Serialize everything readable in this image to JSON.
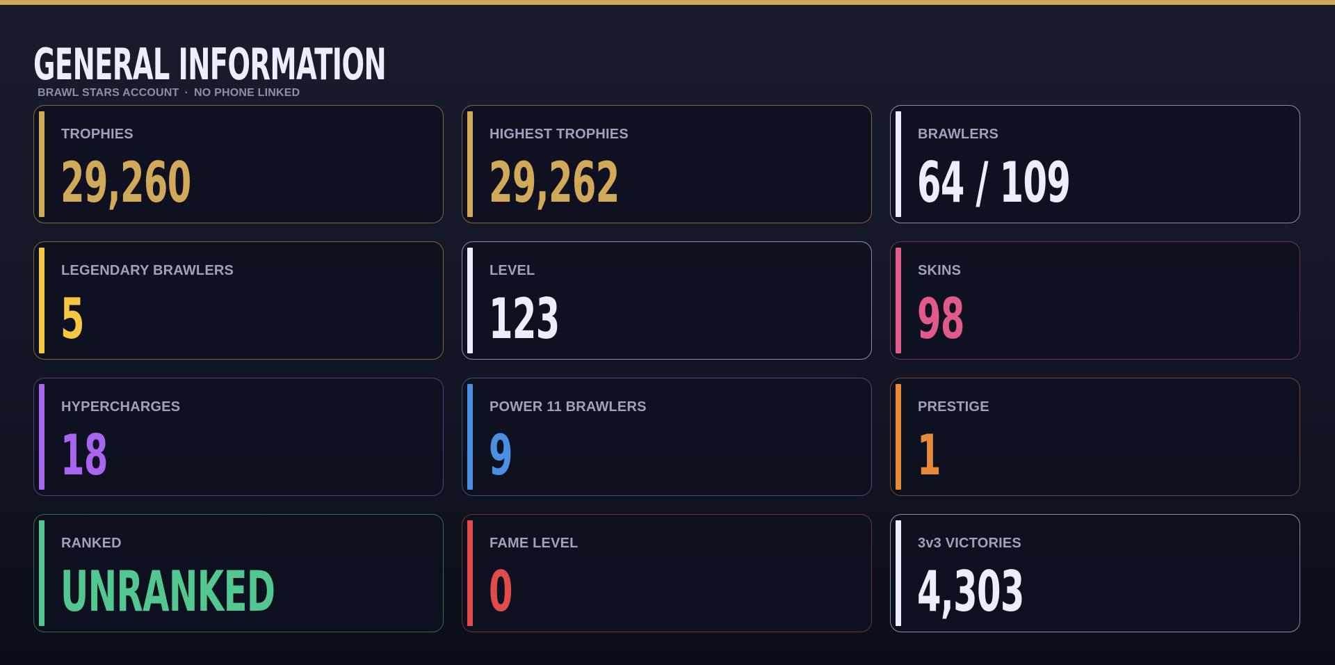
{
  "header": {
    "title": "GENERAL INFORMATION",
    "subtitle_account": "BRAWL STARS ACCOUNT",
    "subtitle_separator": "·",
    "subtitle_phone": "NO PHONE LINKED"
  },
  "colors": {
    "top_bar": "#d1aa59",
    "gold": "#d1aa59",
    "white": "#eceffb",
    "yellow": "#f6c842",
    "pink": "#e05a8a",
    "purple": "#a866ee",
    "blue": "#4a8fe0",
    "orange": "#e8893a",
    "green": "#52c790",
    "red": "#e04c4c"
  },
  "cards": [
    {
      "label": "TROPHIES",
      "value": "29,260",
      "color": "#d1aa59",
      "border": "#7a6a3a"
    },
    {
      "label": "HIGHEST TROPHIES",
      "value": "29,262",
      "color": "#d1aa59",
      "border": "#7a6a3a"
    },
    {
      "label": "BRAWLERS",
      "value": "64 / 109",
      "color": "#eceffb",
      "border": "#8a8fa3"
    },
    {
      "label": "LEGENDARY BRAWLERS",
      "value": "5",
      "color": "#f6c842",
      "border": "#766a35"
    },
    {
      "label": "LEVEL",
      "value": "123",
      "color": "#eceffb",
      "border": "#8a8fa3"
    },
    {
      "label": "SKINS",
      "value": "98",
      "color": "#e05a8a",
      "border": "#6e3650"
    },
    {
      "label": "HYPERCHARGES",
      "value": "18",
      "color": "#a866ee",
      "border": "#52407a"
    },
    {
      "label": "POWER 11 BRAWLERS",
      "value": "9",
      "color": "#4a8fe0",
      "border": "#3e5470"
    },
    {
      "label": "PRESTIGE",
      "value": "1",
      "color": "#e8893a",
      "border": "#704a34"
    },
    {
      "label": "RANKED",
      "value": "UNRANKED",
      "color": "#52c790",
      "border": "#2f6b52"
    },
    {
      "label": "FAME LEVEL",
      "value": "0",
      "color": "#e04c4c",
      "border": "#6e3434"
    },
    {
      "label": "3v3 VICTORIES",
      "value": "4,303",
      "color": "#eceffb",
      "border": "#8a8fa3"
    }
  ]
}
